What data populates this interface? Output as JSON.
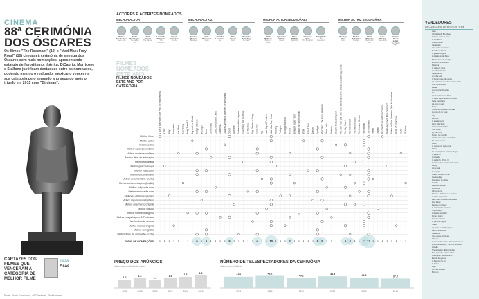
{
  "header": {
    "section": "CINEMA",
    "title": "88ª CERIMÓNIA DOS ÓSCARES",
    "intro": "Os filmes \"The Revenant\" (12) e \"Mad Max: Fury Road\" (10) chegam à cerimónia de entrega dos Óscares com mais nomeações, apresentando estatuto de favoritismo. Iñárritu, DiCaprio, Morricone e Stallone justificam destaques entre os nomeados, podendo mesmo o realizador mexicano vencer na sua categoria pelo segundo ano seguido após o triunfo em 2015 com \"Birdman\"."
  },
  "nominees": {
    "title": "ACTORES E ACTRIZES NOMEADOS",
    "categories": [
      {
        "name": "MELHOR ACTOR",
        "people": [
          {
            "name": "Michael Fassbender",
            "film": "Steve Jobs"
          },
          {
            "name": "Eddie Redmayne",
            "film": "The Danish Girl"
          },
          {
            "name": "Matt Damon",
            "film": "The Martian"
          },
          {
            "name": "Leonardo DiCaprio",
            "film": "The Revenant"
          },
          {
            "name": "Bryan Cranston",
            "film": "Trumbo"
          }
        ]
      },
      {
        "name": "MELHOR ACTRIZ",
        "people": [
          {
            "name": "Saoirse Ronan",
            "film": "Brooklyn"
          },
          {
            "name": "Cate Blanchett",
            "film": "Carol"
          },
          {
            "name": "Jennifer Lawrence",
            "film": "Joy"
          },
          {
            "name": "Brie Larson",
            "film": "Room"
          },
          {
            "name": "Charlotte Rampling",
            "film": "45 Years"
          }
        ]
      },
      {
        "name": "MELHOR ACTOR SECUNDÁRIO",
        "people": [
          {
            "name": "Mark Rylance",
            "film": "Bridge of Spies"
          },
          {
            "name": "Sylvester Stallone",
            "film": "Creed"
          },
          {
            "name": "Mark Ruffalo",
            "film": "Spotlight"
          },
          {
            "name": "Christian Bale",
            "film": "The Big Short"
          },
          {
            "name": "Tom Hardy",
            "film": "The Revenant"
          }
        ]
      },
      {
        "name": "MELHOR ACTRIZ SECUNDÁRIA",
        "people": [
          {
            "name": "Rooney Mara",
            "film": "Carol"
          },
          {
            "name": "Rachel McAdams",
            "film": "Spotlight"
          },
          {
            "name": "Alicia Vikander",
            "film": "The Danish Girl"
          },
          {
            "name": "Kate Winslet",
            "film": "Steve Jobs"
          },
          {
            "name": "Jennifer Jason Leigh",
            "film": "The Hateful Eight"
          }
        ]
      }
    ]
  },
  "films_block": {
    "faded": "FILMES NOMEADOS ESTE ANO",
    "title": "FILMES NOMEADOS ESTE ANO POR CATEGORIA"
  },
  "chart_data": [
    {
      "type": "table",
      "title": "FILMES NOMEADOS ESTE ANO POR CATEGORIA",
      "films": [
        "A Girl in the River: The Price of Forgiveness",
        "A War",
        "Amy",
        "Anomalisa",
        "Ave Maria",
        "Bear Story",
        "Body Team 12",
        "Boy and the World",
        "Bridge of Spies",
        "Brooklyn",
        "Carol",
        "Cartel Land",
        "Chau, beyond the Lines",
        "Cinderella",
        "Claude Lanzmann: Spectres of the Shoah",
        "Creed",
        "Day One",
        "Embrace of the Serpent",
        "Everything Will Be Okay",
        "Ex Machina",
        "Fifty Shades of Grey",
        "Inside Out",
        "Joy",
        "Last Day of Freedom",
        "Mad Max: Fury Road",
        "Mustang",
        "Prologue",
        "Racing Extinction",
        "Room",
        "Sanjay's Super Team",
        "Shaun the Sheep Movie",
        "Shok",
        "Son of Saul",
        "Spectre",
        "Spotlight",
        "Star Wars: The Force Awakens",
        "Steve Jobs",
        "Stutterer",
        "Straight Outta Compton",
        "The 100-Year-Old Man Who Climbed out the Window and Disappeared",
        "The Big Short",
        "The Danish Girl",
        "The Hateful Eight",
        "The Look of Silence",
        "The Martian",
        "The Revenant",
        "Theeb",
        "Trumbo",
        "We Can't Live without Cosmos",
        "What Happened, Miss Simone?",
        "Winter on Fire: Ukraine's Fight for Freedom",
        "World of Tomorrow",
        "Youth",
        "45 Years"
      ],
      "categories": [
        "Melhor filme",
        "Melhor actor",
        "Melhor actriz",
        "Melhor actor secundário",
        "Melhor actriz secundária",
        "Melhor filme de animação",
        "Melhor fotografia",
        "Melhor guarda-roupa",
        "Melhor realizador",
        "Melhor documentário",
        "Melhor documentário (curta)",
        "Melhor curta-metragem (ficção)",
        "Melhor edição de som",
        "Melhor mistura de som",
        "Melhores efeitos especiais",
        "Melhor argumento adaptado",
        "Melhor argumento original",
        "Melhor edição",
        "Melhor filme estrangeiro",
        "Melhor maquilhagem & Penteado",
        "Melhor banda sonora",
        "Melhor música original",
        "Melhor cenografia",
        "Melhor filme de animação (curta)"
      ],
      "totals": [
        1,
        1,
        1,
        1,
        1,
        1,
        1,
        1,
        6,
        1,
        6,
        1,
        1,
        1,
        1,
        5,
        1,
        1,
        1,
        1,
        1,
        6,
        1,
        1,
        10,
        1,
        1,
        1,
        4,
        1,
        1,
        1,
        1,
        1,
        6,
        5,
        2,
        1,
        1,
        1,
        5,
        4,
        3,
        1,
        7,
        12,
        1,
        1,
        1,
        1,
        1,
        1,
        1,
        1
      ],
      "totals_label": "TOTAL DE NOMEAÇÕES"
    },
    {
      "type": "bar",
      "title": "PREÇO DOS ANÚNCIOS",
      "subtitle": "Valores em milhões de euros",
      "categories": [
        "2006",
        "2008",
        "2010",
        "2012",
        "2014",
        "2016"
      ],
      "values": [
        1.2,
        1.4,
        1.1,
        1.4,
        1.6,
        1.8
      ]
    },
    {
      "type": "bar",
      "title": "NÚMERO DE TELESPECTADORES DA CERIMÓNIA",
      "subtitle": "Valores em milhões",
      "categories": [
        "1974",
        "1980",
        "1990",
        "2000",
        "2010",
        "2015"
      ],
      "values": [
        44.5,
        48.2,
        40.2,
        46.3,
        41.3,
        37.3
      ]
    }
  ],
  "posters": {
    "title": "CARTAZES DOS FILMES QUE VENCERAM A CATEGORIA DE MELHOR FILME",
    "year": "1928",
    "film": "Asas"
  },
  "right_panel": {
    "title": "VENCEDORES",
    "subtitle": "DA CATEGORIA DE MELHOR FILME",
    "films": [
      "Asas",
      "A Melodia da Broadway",
      "A Oeste nada de novo",
      "O Cimarron",
      "Grande Hotel",
      "Cavalgada",
      "Uma noite aconteceu",
      "Revolta na Bounty",
      "O grande Ziegfeld",
      "A vida de Emile Zola",
      "Não levas nada contigo",
      "E tudo o vento levou",
      "Rebecca",
      "O vale era verde",
      "A senhora Miniver",
      "Casablanca",
      "A minha vida",
      "O homem que não sorria",
      "Os melhores anos das nossas vidas",
      "A luz é para todos",
      "Hamlet",
      "A corrupção do poder",
      "Eva",
      "Um americano em Paris",
      "O maior espectáculo do mundo",
      "Até à eternidade",
      "Há lodo no cais",
      "Marty",
      "A volta ao mundo em 80 dias",
      "A ponte do rio Kwai",
      "Gigi",
      "Ben-Hur",
      "O apartamento",
      "West Side Story",
      "Lawrence da Arábia",
      "Tom Jones",
      "My Fair Lady",
      "Música no coração",
      "Um homem para a eternidade",
      "No calor da noite",
      "Oliver!",
      "O cowboy da meia-noite",
      "Patton",
      "Os incorruptíveis contra a droga",
      "O padrinho",
      "A golpada",
      "O padrinho - Parte II",
      "Voando sobre um ninho de cucos",
      "Rocky",
      "Annie Hall",
      "O caçador",
      "Kramer contra Kramer",
      "Gente vulgar",
      "Momentos de glória",
      "Gandhi",
      "Laços de ternura",
      "Amadeus",
      "África minha",
      "Platoon - Os bravos do pelotão",
      "O último imperador",
      "Rain man - Encontro de irmãos",
      "Miss Daisy",
      "Danças com lobos",
      "O silêncio dos inocentes",
      "Imperdoável",
      "A lista de Schindler",
      "Forrest Gump",
      "Coração valente",
      "O paciente inglês",
      "Titanic",
      "A paixão de Shakespeare",
      "Beleza americana",
      "Gladiador",
      "Uma mente brilhante",
      "Chicago",
      "O senhor dos anéis - O regresso do rei",
      "Million dollar baby - Sonhos vencidos",
      "Colisão",
      "The departed - Entre inimigos",
      "Este país não é para velhos",
      "Quem quer ser bilionário?",
      "Estado de guerra",
      "O discurso do rei",
      "O artista",
      "Argo",
      "12 anos escravo",
      "Birdman"
    ]
  }
}
